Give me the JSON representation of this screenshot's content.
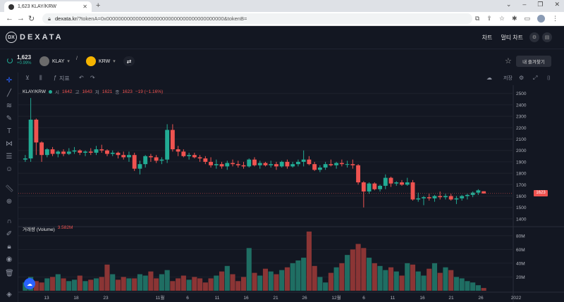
{
  "browser": {
    "tab_title": "1,623 KLAY/KRW",
    "url_domain": "dexata.kr",
    "url_rest": "/?tokenA=0x0000000000000000000000000000000000000000&tokenB="
  },
  "header": {
    "logo_text": "DEXATA",
    "logo_mark": "DX",
    "menu": [
      "차트",
      "멀티 차트"
    ]
  },
  "pair": {
    "price": "1,623",
    "change": "+0.99%",
    "base": "KLAY",
    "quote": "KRW",
    "separator": "/",
    "favorite_label": "내 즐겨찾기"
  },
  "toolbar": {
    "indicators_label": "지표",
    "save_label": "저장"
  },
  "legend": {
    "symbol": "KLAY/KRW",
    "o_label": "시",
    "o": "1642",
    "h_label": "고",
    "h": "1643",
    "l_label": "저",
    "l": "1621",
    "c_label": "종",
    "c": "1623",
    "change": "−19 (−1.16%)"
  },
  "volume_legend": {
    "label": "거래량 (Volume)",
    "value": "3.582M"
  },
  "last_price_tag": "1623",
  "colors": {
    "up": "#22ab94",
    "down": "#ef5350",
    "background": "#131722",
    "grid": "#1e222d"
  },
  "chart_data": {
    "type": "candlestick",
    "title": "KLAY/KRW",
    "price_axis": {
      "ticks": [
        2500,
        2400,
        2300,
        2200,
        2100,
        2000,
        1900,
        1800,
        1700,
        1600,
        1500,
        1400
      ],
      "range": [
        1350,
        2560
      ]
    },
    "volume_axis": {
      "ticks": [
        "80M",
        "60M",
        "40M",
        "20M"
      ],
      "range": [
        0,
        90
      ]
    },
    "x_ticks": [
      "13",
      "18",
      "23",
      "11월",
      "6",
      "11",
      "16",
      "21",
      "26",
      "12월",
      "6",
      "11",
      "16",
      "21",
      "26",
      "2022"
    ],
    "candles": [
      [
        1920,
        1960,
        1900,
        1930,
        12
      ],
      [
        1930,
        2460,
        1900,
        2270,
        20
      ],
      [
        2270,
        2280,
        1960,
        2070,
        14
      ],
      [
        2070,
        2080,
        1900,
        1960,
        12
      ],
      [
        1960,
        2020,
        1940,
        2010,
        18
      ],
      [
        2010,
        2030,
        1950,
        1970,
        20
      ],
      [
        1970,
        2000,
        1940,
        1990,
        24
      ],
      [
        1990,
        2010,
        1950,
        1970,
        18
      ],
      [
        1970,
        2020,
        1960,
        1990,
        14
      ],
      [
        1990,
        2030,
        1970,
        2000,
        16
      ],
      [
        2000,
        2010,
        1960,
        1980,
        22
      ],
      [
        1980,
        2000,
        1950,
        1990,
        14
      ],
      [
        1990,
        2020,
        1960,
        1980,
        16
      ],
      [
        1980,
        2040,
        1960,
        2010,
        18
      ],
      [
        2010,
        2050,
        1980,
        2000,
        20
      ],
      [
        2000,
        2010,
        1950,
        1970,
        38
      ],
      [
        1970,
        2000,
        1950,
        1980,
        24
      ],
      [
        1980,
        1990,
        1930,
        1960,
        16
      ],
      [
        1960,
        1990,
        1920,
        1940,
        20
      ],
      [
        1940,
        1990,
        1900,
        1960,
        18
      ],
      [
        1960,
        1980,
        1820,
        1840,
        18
      ],
      [
        1840,
        1910,
        1790,
        1880,
        24
      ],
      [
        1880,
        1960,
        1850,
        1950,
        22
      ],
      [
        1950,
        1970,
        1900,
        1940,
        28
      ],
      [
        1940,
        1960,
        1890,
        1910,
        18
      ],
      [
        1910,
        1940,
        1880,
        1920,
        24
      ],
      [
        1920,
        2230,
        1890,
        2180,
        30
      ],
      [
        2180,
        2230,
        1990,
        2010,
        14
      ],
      [
        2010,
        2040,
        1950,
        1990,
        18
      ],
      [
        1990,
        2010,
        1940,
        1950,
        22
      ],
      [
        1950,
        1980,
        1920,
        1960,
        16
      ],
      [
        1960,
        1980,
        1930,
        1940,
        20
      ],
      [
        1940,
        1960,
        1900,
        1930,
        18
      ],
      [
        1930,
        1950,
        1880,
        1900,
        12
      ],
      [
        1900,
        1940,
        1850,
        1870,
        18
      ],
      [
        1870,
        1920,
        1840,
        1880,
        22
      ],
      [
        1880,
        1900,
        1840,
        1860,
        28
      ],
      [
        1860,
        1910,
        1830,
        1890,
        36
      ],
      [
        1890,
        1920,
        1860,
        1880,
        24
      ],
      [
        1880,
        1910,
        1850,
        1870,
        14
      ],
      [
        1870,
        1900,
        1840,
        1860,
        20
      ],
      [
        1860,
        1930,
        1850,
        1920,
        62
      ],
      [
        1920,
        1940,
        1860,
        1870,
        26
      ],
      [
        1870,
        1910,
        1840,
        1890,
        22
      ],
      [
        1890,
        1900,
        1860,
        1870,
        32
      ],
      [
        1870,
        1910,
        1850,
        1880,
        28
      ],
      [
        1880,
        1900,
        1830,
        1860,
        24
      ],
      [
        1860,
        1910,
        1850,
        1900,
        30
      ],
      [
        1900,
        1920,
        1840,
        1860,
        34
      ],
      [
        1860,
        1900,
        1850,
        1880,
        40
      ],
      [
        1880,
        1920,
        1860,
        1900,
        44
      ],
      [
        1900,
        2000,
        1860,
        1920,
        48
      ],
      [
        1920,
        1950,
        1870,
        1880,
        86
      ],
      [
        1880,
        1900,
        1820,
        1830,
        36
      ],
      [
        1830,
        1870,
        1810,
        1850,
        20
      ],
      [
        1850,
        1900,
        1830,
        1880,
        12
      ],
      [
        1880,
        1920,
        1860,
        1870,
        26
      ],
      [
        1870,
        1900,
        1840,
        1890,
        34
      ],
      [
        1890,
        1920,
        1860,
        1880,
        40
      ],
      [
        1880,
        1910,
        1850,
        1880,
        52
      ],
      [
        1880,
        1920,
        1840,
        1870,
        60
      ],
      [
        1870,
        1880,
        1700,
        1720,
        68
      ],
      [
        1720,
        1730,
        1500,
        1640,
        62
      ],
      [
        1640,
        1720,
        1620,
        1710,
        48
      ],
      [
        1710,
        1720,
        1650,
        1660,
        40
      ],
      [
        1660,
        1700,
        1640,
        1690,
        36
      ],
      [
        1690,
        1790,
        1660,
        1760,
        30
      ],
      [
        1760,
        1770,
        1680,
        1710,
        34
      ],
      [
        1710,
        1730,
        1690,
        1720,
        28
      ],
      [
        1720,
        1740,
        1690,
        1700,
        22
      ],
      [
        1700,
        1760,
        1690,
        1720,
        40
      ],
      [
        1720,
        1740,
        1560,
        1570,
        38
      ],
      [
        1570,
        1630,
        1550,
        1580,
        28
      ],
      [
        1580,
        1600,
        1520,
        1590,
        22
      ],
      [
        1590,
        1620,
        1560,
        1580,
        32
      ],
      [
        1580,
        1610,
        1550,
        1600,
        40
      ],
      [
        1600,
        1640,
        1570,
        1590,
        26
      ],
      [
        1590,
        1620,
        1570,
        1600,
        34
      ],
      [
        1600,
        1620,
        1560,
        1570,
        30
      ],
      [
        1570,
        1600,
        1530,
        1580,
        20
      ],
      [
        1580,
        1610,
        1560,
        1600,
        18
      ],
      [
        1600,
        1620,
        1570,
        1610,
        14
      ],
      [
        1610,
        1640,
        1590,
        1630,
        12
      ],
      [
        1630,
        1660,
        1610,
        1650,
        8
      ],
      [
        1642,
        1643,
        1621,
        1623,
        4
      ]
    ]
  }
}
